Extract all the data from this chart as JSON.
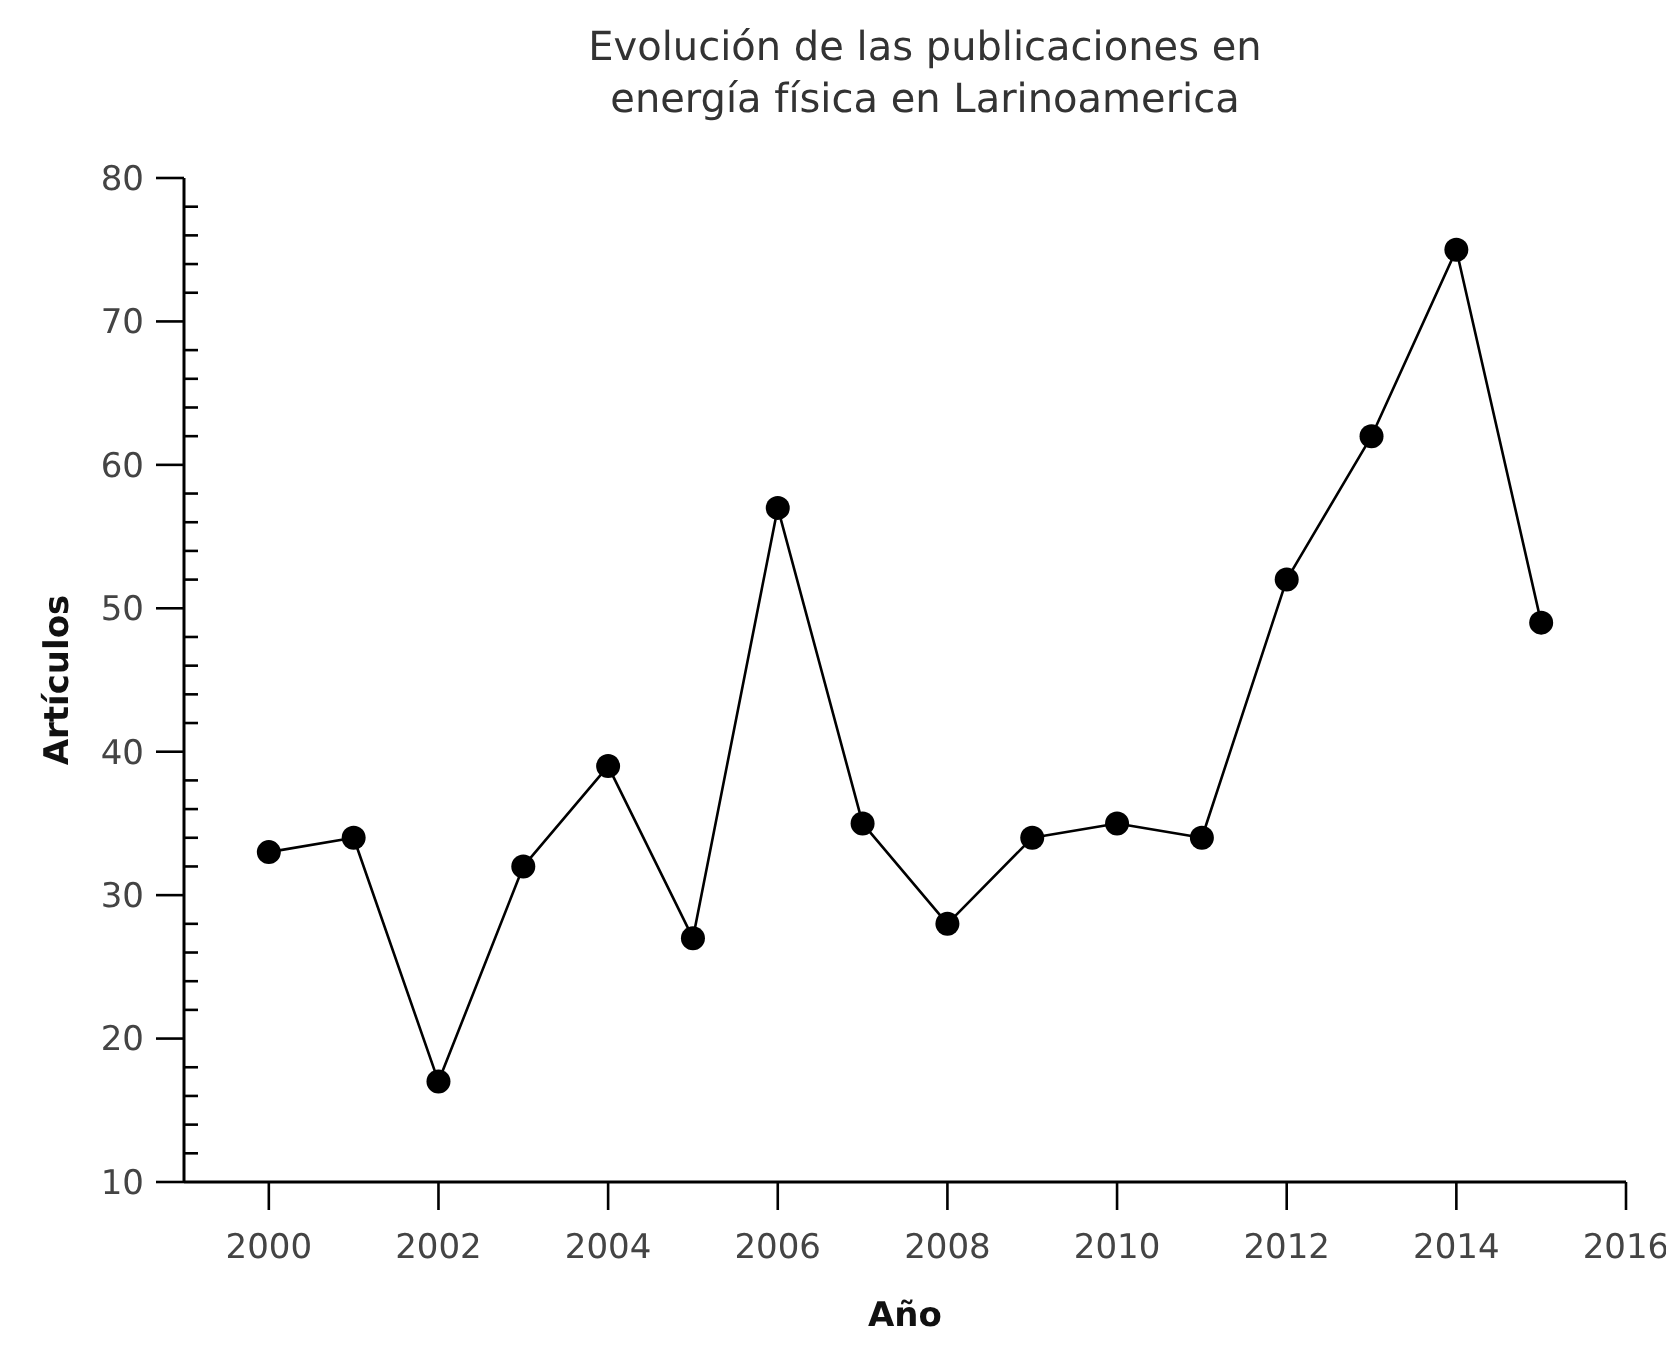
{
  "chart_data": {
    "type": "line",
    "title": "Evolución de las publicaciones en\nenergía física en Larinoamerica",
    "xlabel": "Año",
    "ylabel": "Artículos",
    "x": [
      2000,
      2001,
      2002,
      2003,
      2004,
      2005,
      2006,
      2007,
      2008,
      2009,
      2010,
      2011,
      2012,
      2013,
      2014,
      2015
    ],
    "series": [
      {
        "color": "#000000",
        "values": [
          33,
          34,
          17,
          32,
          39,
          27,
          57,
          35,
          28,
          34,
          35,
          34,
          52,
          62,
          75,
          49
        ]
      }
    ],
    "xlim": [
      1999,
      2016
    ],
    "xticks": [
      2000,
      2002,
      2004,
      2006,
      2008,
      2010,
      2012,
      2014,
      2016
    ],
    "ylim": [
      10,
      80
    ],
    "yticks": [
      10,
      {
        "value": 12,
        "label": null
      },
      {
        "value": 14,
        "label": null
      },
      {
        "value": 16,
        "label": null
      },
      {
        "value": 18,
        "label": null
      },
      20,
      {
        "value": 22,
        "label": null
      },
      {
        "value": 24,
        "label": null
      },
      {
        "value": 26,
        "label": null
      },
      {
        "value": 28,
        "label": null
      },
      30,
      {
        "value": 32,
        "label": null
      },
      {
        "value": 34,
        "label": null
      },
      {
        "value": 36,
        "label": null
      },
      {
        "value": 38,
        "label": null
      },
      40,
      {
        "value": 42,
        "label": null
      },
      {
        "value": 44,
        "label": null
      },
      {
        "value": 46,
        "label": null
      },
      {
        "value": 48,
        "label": null
      },
      50,
      {
        "value": 52,
        "label": null
      },
      {
        "value": 54,
        "label": null
      },
      {
        "value": 56,
        "label": null
      },
      {
        "value": 58,
        "label": null
      },
      60,
      {
        "value": 62,
        "label": null
      },
      {
        "value": 64,
        "label": null
      },
      {
        "value": 66,
        "label": null
      },
      {
        "value": 68,
        "label": null
      },
      70,
      {
        "value": 72,
        "label": null
      },
      {
        "value": 74,
        "label": null
      },
      {
        "value": 76,
        "label": null
      },
      {
        "value": 78,
        "label": null
      },
      80
    ],
    "marker": "circle",
    "line_style": "solid"
  }
}
